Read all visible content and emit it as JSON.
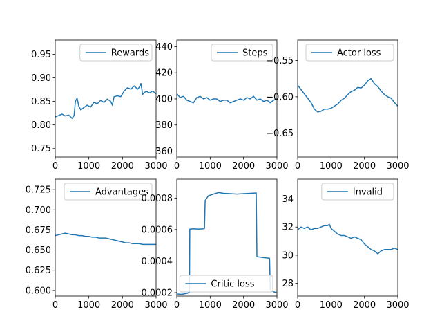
{
  "colors": {
    "line": "#1f77b4",
    "axes": "#000000",
    "legend_border": "#cccccc",
    "background": "#ffffff"
  },
  "chart_data": [
    {
      "type": "line",
      "series": [
        {
          "name": "Rewards",
          "values": [
            [
              0,
              0.817
            ],
            [
              100,
              0.82
            ],
            [
              200,
              0.823
            ],
            [
              300,
              0.819
            ],
            [
              400,
              0.821
            ],
            [
              500,
              0.814
            ],
            [
              560,
              0.82
            ],
            [
              600,
              0.85
            ],
            [
              650,
              0.857
            ],
            [
              700,
              0.84
            ],
            [
              760,
              0.832
            ],
            [
              850,
              0.837
            ],
            [
              950,
              0.842
            ],
            [
              1050,
              0.838
            ],
            [
              1150,
              0.848
            ],
            [
              1250,
              0.845
            ],
            [
              1350,
              0.852
            ],
            [
              1450,
              0.848
            ],
            [
              1550,
              0.855
            ],
            [
              1650,
              0.85
            ],
            [
              1700,
              0.842
            ],
            [
              1750,
              0.86
            ],
            [
              1850,
              0.862
            ],
            [
              1950,
              0.86
            ],
            [
              2050,
              0.872
            ],
            [
              2150,
              0.879
            ],
            [
              2250,
              0.876
            ],
            [
              2350,
              0.883
            ],
            [
              2450,
              0.876
            ],
            [
              2500,
              0.88
            ],
            [
              2550,
              0.888
            ],
            [
              2600,
              0.865
            ],
            [
              2700,
              0.872
            ],
            [
              2800,
              0.868
            ],
            [
              2900,
              0.872
            ],
            [
              3000,
              0.866
            ]
          ]
        }
      ],
      "legend_loc": "upper right",
      "xlim": [
        0,
        3000
      ],
      "ylim": [
        0.732,
        0.98
      ],
      "xticks": [
        0,
        1000,
        2000,
        3000
      ],
      "yticks": [
        0.75,
        0.8,
        0.85,
        0.9,
        0.95
      ],
      "xticklabels": [
        "0",
        "1000",
        "2000",
        "3000"
      ],
      "yticklabels": [
        "0.75",
        "0.80",
        "0.85",
        "0.90",
        "0.95"
      ]
    },
    {
      "type": "line",
      "series": [
        {
          "name": "Steps",
          "values": [
            [
              0,
              404
            ],
            [
              100,
              401
            ],
            [
              200,
              402
            ],
            [
              300,
              399
            ],
            [
              400,
              398
            ],
            [
              500,
              397
            ],
            [
              600,
              401
            ],
            [
              700,
              402
            ],
            [
              800,
              400
            ],
            [
              900,
              401
            ],
            [
              1000,
              399
            ],
            [
              1100,
              400
            ],
            [
              1200,
              400
            ],
            [
              1300,
              398
            ],
            [
              1400,
              399
            ],
            [
              1500,
              399
            ],
            [
              1600,
              397
            ],
            [
              1700,
              398
            ],
            [
              1800,
              399
            ],
            [
              1900,
              400
            ],
            [
              2000,
              399
            ],
            [
              2100,
              401
            ],
            [
              2200,
              400
            ],
            [
              2300,
              402
            ],
            [
              2400,
              399
            ],
            [
              2500,
              400
            ],
            [
              2600,
              398
            ],
            [
              2700,
              399
            ],
            [
              2800,
              397
            ],
            [
              2900,
              399
            ],
            [
              3000,
              400
            ]
          ]
        }
      ],
      "legend_loc": "upper right",
      "xlim": [
        0,
        3000
      ],
      "ylim": [
        355.5,
        445
      ],
      "xticks": [
        0,
        1000,
        2000,
        3000
      ],
      "yticks": [
        360,
        380,
        400,
        420,
        440
      ],
      "xticklabels": [
        "0",
        "1000",
        "2000",
        "3000"
      ],
      "yticklabels": [
        "360",
        "380",
        "400",
        "420",
        "440"
      ]
    },
    {
      "type": "line",
      "series": [
        {
          "name": "Actor loss",
          "values": [
            [
              0,
              -0.584
            ],
            [
              100,
              -0.59
            ],
            [
              200,
              -0.596
            ],
            [
              300,
              -0.602
            ],
            [
              400,
              -0.608
            ],
            [
              500,
              -0.617
            ],
            [
              600,
              -0.621
            ],
            [
              700,
              -0.62
            ],
            [
              800,
              -0.617
            ],
            [
              900,
              -0.617
            ],
            [
              1000,
              -0.616
            ],
            [
              1100,
              -0.613
            ],
            [
              1200,
              -0.61
            ],
            [
              1300,
              -0.605
            ],
            [
              1400,
              -0.602
            ],
            [
              1500,
              -0.597
            ],
            [
              1600,
              -0.593
            ],
            [
              1700,
              -0.591
            ],
            [
              1800,
              -0.587
            ],
            [
              1900,
              -0.588
            ],
            [
              2000,
              -0.584
            ],
            [
              2100,
              -0.578
            ],
            [
              2200,
              -0.575
            ],
            [
              2300,
              -0.582
            ],
            [
              2400,
              -0.586
            ],
            [
              2500,
              -0.592
            ],
            [
              2600,
              -0.597
            ],
            [
              2700,
              -0.6
            ],
            [
              2800,
              -0.602
            ],
            [
              2900,
              -0.608
            ],
            [
              3000,
              -0.613
            ]
          ]
        }
      ],
      "legend_loc": "upper right",
      "xlim": [
        0,
        3000
      ],
      "ylim": [
        -0.683,
        -0.522
      ],
      "xticks": [
        0,
        1000,
        2000,
        3000
      ],
      "yticks": [
        -0.65,
        -0.6,
        -0.55
      ],
      "xticklabels": [
        "0",
        "1000",
        "2000",
        "3000"
      ],
      "yticklabels": [
        "−0.65",
        "−0.60",
        "−0.55"
      ]
    },
    {
      "type": "line",
      "series": [
        {
          "name": "Advantages",
          "values": [
            [
              0,
              0.668
            ],
            [
              100,
              0.669
            ],
            [
              200,
              0.67
            ],
            [
              300,
              0.671
            ],
            [
              400,
              0.67
            ],
            [
              500,
              0.669
            ],
            [
              600,
              0.669
            ],
            [
              700,
              0.668
            ],
            [
              800,
              0.668
            ],
            [
              900,
              0.667
            ],
            [
              1000,
              0.667
            ],
            [
              1100,
              0.666
            ],
            [
              1200,
              0.666
            ],
            [
              1300,
              0.665
            ],
            [
              1400,
              0.665
            ],
            [
              1500,
              0.665
            ],
            [
              1600,
              0.664
            ],
            [
              1700,
              0.663
            ],
            [
              1800,
              0.662
            ],
            [
              1900,
              0.661
            ],
            [
              2000,
              0.66
            ],
            [
              2100,
              0.659
            ],
            [
              2200,
              0.659
            ],
            [
              2300,
              0.658
            ],
            [
              2400,
              0.658
            ],
            [
              2500,
              0.658
            ],
            [
              2600,
              0.657
            ],
            [
              2700,
              0.657
            ],
            [
              2800,
              0.657
            ],
            [
              2900,
              0.657
            ],
            [
              3000,
              0.657
            ]
          ]
        }
      ],
      "legend_loc": "upper right",
      "xlim": [
        0,
        3000
      ],
      "ylim": [
        0.593,
        0.738
      ],
      "xticks": [
        0,
        1000,
        2000,
        3000
      ],
      "yticks": [
        0.6,
        0.625,
        0.65,
        0.675,
        0.7,
        0.725
      ],
      "xticklabels": [
        "0",
        "1000",
        "2000",
        "3000"
      ],
      "yticklabels": [
        "0.600",
        "0.625",
        "0.650",
        "0.675",
        "0.700",
        "0.725"
      ]
    },
    {
      "type": "line",
      "series": [
        {
          "name": "Critic loss",
          "values": [
            [
              0,
              0.000191
            ],
            [
              150,
              0.000189
            ],
            [
              300,
              0.000195
            ],
            [
              380,
              0.000201
            ],
            [
              390,
              0.000603
            ],
            [
              500,
              0.000605
            ],
            [
              650,
              0.000603
            ],
            [
              800,
              0.000605
            ],
            [
              830,
              0.000607
            ],
            [
              850,
              0.000785
            ],
            [
              950,
              0.000815
            ],
            [
              1100,
              0.000825
            ],
            [
              1250,
              0.000835
            ],
            [
              1400,
              0.00083
            ],
            [
              1600,
              0.000828
            ],
            [
              1800,
              0.000825
            ],
            [
              2000,
              0.000828
            ],
            [
              2200,
              0.00083
            ],
            [
              2380,
              0.000832
            ],
            [
              2400,
              0.000428
            ],
            [
              2500,
              0.000425
            ],
            [
              2600,
              0.000422
            ],
            [
              2700,
              0.00042
            ],
            [
              2780,
              0.000418
            ],
            [
              2800,
              0.00022
            ],
            [
              2900,
              0.000205
            ],
            [
              3000,
              0.0002
            ]
          ]
        }
      ],
      "legend_loc": "lower right",
      "xlim": [
        0,
        3000
      ],
      "ylim": [
        0.000178,
        0.00092
      ],
      "xticks": [
        0,
        1000,
        2000,
        3000
      ],
      "yticks": [
        0.0002,
        0.0004,
        0.0006,
        0.0008
      ],
      "xticklabels": [
        "0",
        "1000",
        "2000",
        "3000"
      ],
      "yticklabels": [
        "0.0002",
        "0.0004",
        "0.0006",
        "0.0008"
      ]
    },
    {
      "type": "line",
      "series": [
        {
          "name": "Invalid",
          "values": [
            [
              0,
              31.8
            ],
            [
              100,
              32
            ],
            [
              200,
              31.9
            ],
            [
              300,
              32
            ],
            [
              400,
              31.8
            ],
            [
              500,
              31.9
            ],
            [
              600,
              31.9
            ],
            [
              700,
              32
            ],
            [
              800,
              32.1
            ],
            [
              900,
              32.1
            ],
            [
              950,
              32.2
            ],
            [
              1000,
              31.9
            ],
            [
              1100,
              31.7
            ],
            [
              1200,
              31.5
            ],
            [
              1300,
              31.4
            ],
            [
              1400,
              31.4
            ],
            [
              1500,
              31.3
            ],
            [
              1600,
              31.2
            ],
            [
              1700,
              31.3
            ],
            [
              1800,
              31.2
            ],
            [
              1900,
              31.1
            ],
            [
              2000,
              30.8
            ],
            [
              2100,
              30.6
            ],
            [
              2200,
              30.4
            ],
            [
              2300,
              30.3
            ],
            [
              2400,
              30.1
            ],
            [
              2500,
              30.3
            ],
            [
              2600,
              30.4
            ],
            [
              2700,
              30.4
            ],
            [
              2800,
              30.4
            ],
            [
              2900,
              30.5
            ],
            [
              3000,
              30.4
            ]
          ]
        }
      ],
      "legend_loc": "upper right",
      "xlim": [
        0,
        3000
      ],
      "ylim": [
        27.1,
        35.4
      ],
      "xticks": [
        0,
        1000,
        2000,
        3000
      ],
      "yticks": [
        28,
        30,
        32,
        34
      ],
      "xticklabels": [
        "0",
        "1000",
        "2000",
        "3000"
      ],
      "yticklabels": [
        "28",
        "30",
        "32",
        "34"
      ]
    }
  ]
}
